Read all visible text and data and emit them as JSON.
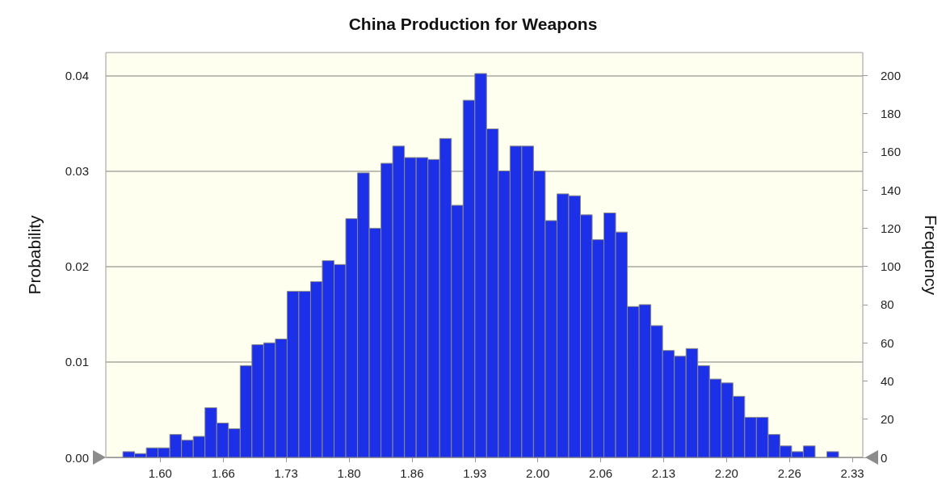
{
  "chart_data": {
    "type": "histogram",
    "title": "China Production for Weapons",
    "ylabel": "Probability",
    "y2label": "Frequency",
    "bins": [
      1.558,
      1.5704,
      1.5828,
      1.5952,
      1.6076,
      1.62,
      1.6324,
      1.6448,
      1.6572,
      1.6696,
      1.682,
      1.6944,
      1.7068,
      1.7192,
      1.7316,
      1.744,
      1.7564,
      1.7688,
      1.7812,
      1.7936,
      1.806,
      1.8184,
      1.8308,
      1.8432,
      1.8556,
      1.868,
      1.8804,
      1.8928,
      1.9052,
      1.9176,
      1.93,
      1.9424,
      1.9548,
      1.9672,
      1.9796,
      1.992,
      2.0044,
      2.0168,
      2.0292,
      2.0416,
      2.054,
      2.0664,
      2.0788,
      2.0912,
      2.1036,
      2.116,
      2.1284,
      2.1408,
      2.1532,
      2.1656,
      2.178,
      2.1904,
      2.2028,
      2.2152,
      2.2276,
      2.24,
      2.2524,
      2.2648,
      2.2772,
      2.2896,
      2.302,
      2.3144
    ],
    "series": [
      {
        "color": "#1c30e8",
        "axis": "y2",
        "values": [
          3,
          2,
          5,
          5,
          12,
          9,
          11,
          26,
          18,
          15,
          48,
          59,
          60,
          62,
          87,
          87,
          92,
          103,
          101,
          125,
          149,
          120,
          154,
          163,
          157,
          157,
          156,
          167,
          132,
          187,
          201,
          172,
          150,
          163,
          163,
          150,
          124,
          138,
          137,
          127,
          114,
          128,
          118,
          79,
          80,
          69,
          56,
          53,
          57,
          48,
          41,
          39,
          32,
          21,
          21,
          12,
          6,
          3,
          6,
          0,
          3
        ]
      }
    ],
    "xlim": [
      1.54,
      2.34
    ],
    "xticks": [
      {
        "value": 1.5975,
        "label": "1.60"
      },
      {
        "value": 1.664,
        "label": "1.66"
      },
      {
        "value": 1.7305,
        "label": "1.73"
      },
      {
        "value": 1.797,
        "label": "1.80"
      },
      {
        "value": 1.8635,
        "label": "1.86"
      },
      {
        "value": 1.93,
        "label": "1.93"
      },
      {
        "value": 1.9965,
        "label": "2.00"
      },
      {
        "value": 2.063,
        "label": "2.06"
      },
      {
        "value": 2.1295,
        "label": "2.13"
      },
      {
        "value": 2.196,
        "label": "2.20"
      },
      {
        "value": 2.2625,
        "label": "2.26"
      },
      {
        "value": 2.329,
        "label": "2.33"
      }
    ],
    "ylim": [
      0,
      0.0424
    ],
    "yticks": [
      {
        "value": 0,
        "label": "0.00"
      },
      0.01,
      0.02,
      0.03,
      0.04
    ],
    "y2lim": [
      0,
      212
    ],
    "y2ticks": [
      0,
      20,
      40,
      60,
      80,
      100,
      120,
      140,
      160,
      180,
      200
    ],
    "grid": "y"
  }
}
